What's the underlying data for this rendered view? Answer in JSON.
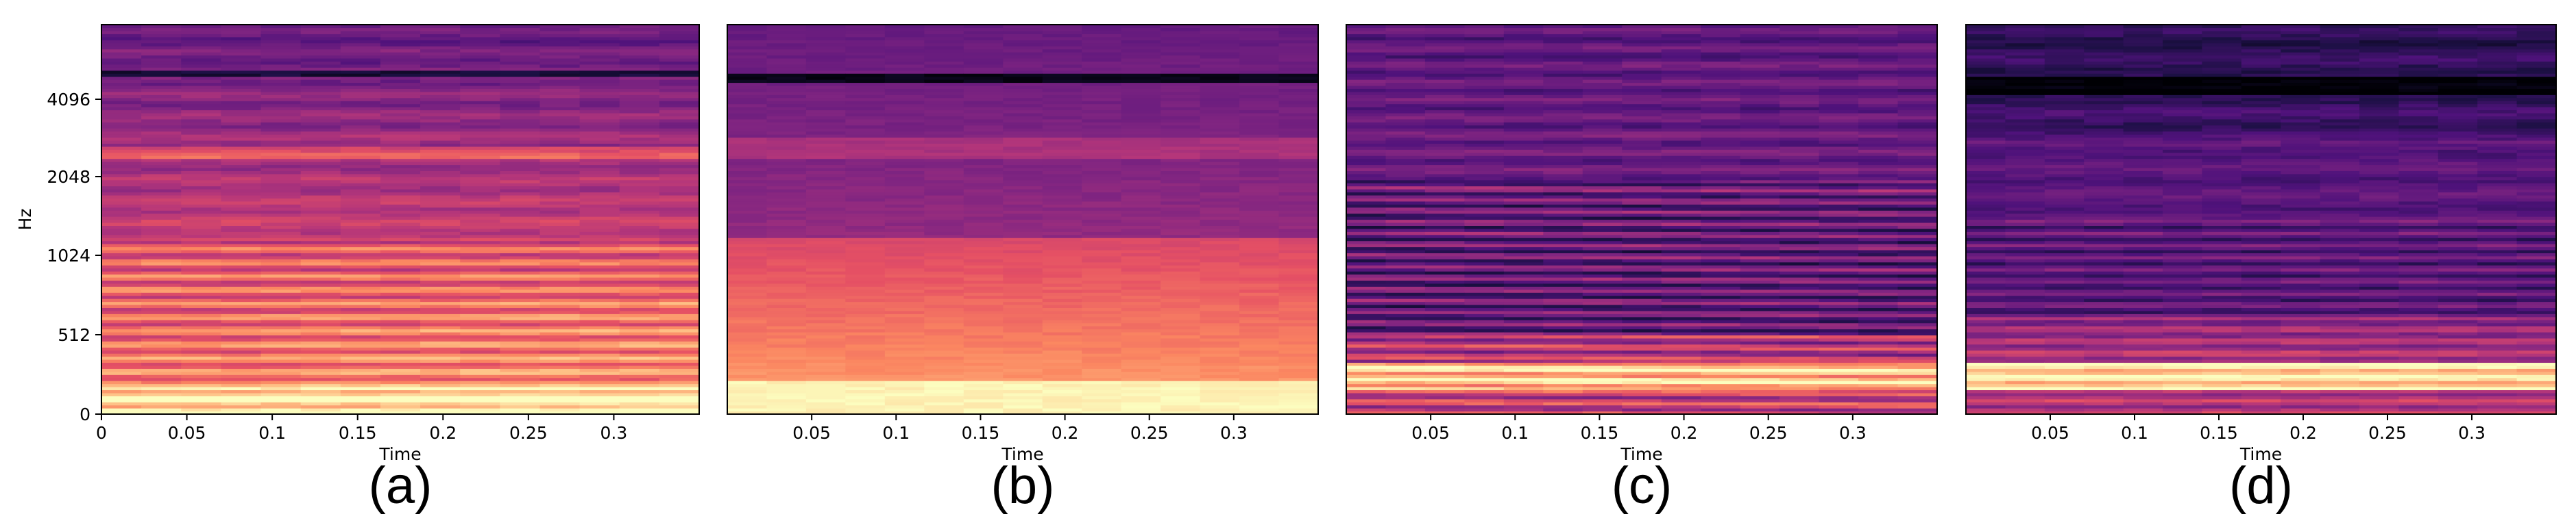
{
  "chart_data": [
    {
      "type": "heatmap",
      "panel_label": "(a)",
      "xlabel": "Time",
      "ylabel": "Hz",
      "xlim": [
        0,
        0.35
      ],
      "x_ticks": [
        0,
        0.05,
        0.1,
        0.15,
        0.2,
        0.25,
        0.3
      ],
      "x_tick_labels": [
        "0",
        "0.05",
        "0.1",
        "0.15",
        "0.2",
        "0.25",
        "0.3"
      ],
      "y_scale": "mel",
      "y_ticks": [
        0,
        512,
        1024,
        2048,
        4096
      ],
      "y_tick_labels": [
        "0",
        "512",
        "1024",
        "2048",
        "4096"
      ],
      "colormap": "magma",
      "description_profile": "harmonic",
      "time_frames": 15
    },
    {
      "type": "heatmap",
      "panel_label": "(b)",
      "xlabel": "Time",
      "ylabel": "",
      "xlim": [
        0,
        0.35
      ],
      "x_ticks": [
        0.05,
        0.1,
        0.15,
        0.2,
        0.25,
        0.3
      ],
      "x_tick_labels": [
        "0.05",
        "0.1",
        "0.15",
        "0.2",
        "0.25",
        "0.3"
      ],
      "y_scale": "mel",
      "colormap": "magma",
      "description_profile": "smooth",
      "time_frames": 15
    },
    {
      "type": "heatmap",
      "panel_label": "(c)",
      "xlabel": "Time",
      "ylabel": "",
      "xlim": [
        0,
        0.35
      ],
      "x_ticks": [
        0.05,
        0.1,
        0.15,
        0.2,
        0.25,
        0.3
      ],
      "x_tick_labels": [
        "0.05",
        "0.1",
        "0.15",
        "0.2",
        "0.25",
        "0.3"
      ],
      "y_scale": "mel",
      "colormap": "magma",
      "description_profile": "harmonic-dark",
      "time_frames": 15
    },
    {
      "type": "heatmap",
      "panel_label": "(d)",
      "xlabel": "Time",
      "ylabel": "",
      "xlim": [
        0,
        0.35
      ],
      "x_ticks": [
        0.05,
        0.1,
        0.15,
        0.2,
        0.25,
        0.3
      ],
      "x_tick_labels": [
        "0.05",
        "0.1",
        "0.15",
        "0.2",
        "0.25",
        "0.3"
      ],
      "y_scale": "mel",
      "colormap": "magma",
      "description_profile": "smooth-dark",
      "time_frames": 15
    }
  ]
}
